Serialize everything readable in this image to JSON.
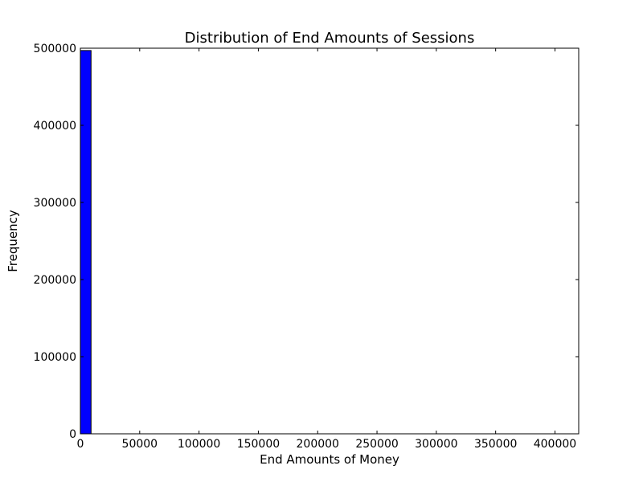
{
  "chart_data": {
    "type": "bar",
    "title": "Distribution of End Amounts of Sessions",
    "xlabel": "End Amounts of Money",
    "ylabel": "Frequency",
    "xlim": [
      0,
      420000
    ],
    "ylim": [
      0,
      500000
    ],
    "xticks": [
      0,
      50000,
      100000,
      150000,
      200000,
      250000,
      300000,
      350000,
      400000
    ],
    "yticks": [
      0,
      100000,
      200000,
      300000,
      400000,
      500000
    ],
    "grid": false,
    "bar_color": "#0000ff",
    "bins": [
      {
        "x0": 0,
        "x1": 9000,
        "value": 497000
      }
    ]
  }
}
